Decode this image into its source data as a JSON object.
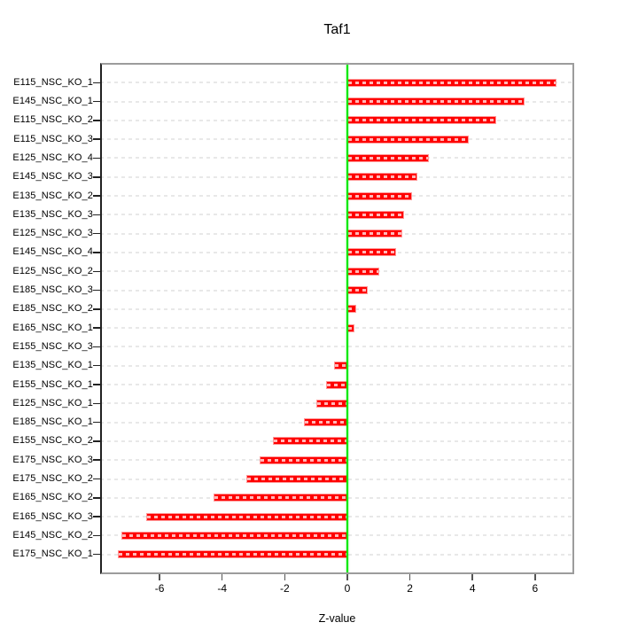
{
  "figure": {
    "title": "Taf1",
    "xlabel": "Z-value"
  },
  "chart_data": {
    "type": "bar",
    "orientation": "horizontal",
    "title": "Taf1",
    "xlabel": "Z-value",
    "ylabel": "",
    "legend": "none",
    "grid": "row-dashed",
    "categories": [
      "E115_NSC_KO_1",
      "E145_NSC_KO_1",
      "E115_NSC_KO_2",
      "E115_NSC_KO_3",
      "E125_NSC_KO_4",
      "E145_NSC_KO_3",
      "E135_NSC_KO_2",
      "E135_NSC_KO_3",
      "E125_NSC_KO_3",
      "E145_NSC_KO_4",
      "E125_NSC_KO_2",
      "E185_NSC_KO_3",
      "E185_NSC_KO_2",
      "E165_NSC_KO_1",
      "E155_NSC_KO_3",
      "E135_NSC_KO_1",
      "E155_NSC_KO_1",
      "E125_NSC_KO_1",
      "E185_NSC_KO_1",
      "E155_NSC_KO_2",
      "E175_NSC_KO_3",
      "E175_NSC_KO_2",
      "E165_NSC_KO_2",
      "E165_NSC_KO_3",
      "E145_NSC_KO_2",
      "E175_NSC_KO_1"
    ],
    "values": [
      6.69,
      5.67,
      4.76,
      3.88,
      2.61,
      2.25,
      2.08,
      1.8,
      1.75,
      1.56,
      1.02,
      0.64,
      0.27,
      0.22,
      -0.03,
      -0.43,
      -0.67,
      -0.99,
      -1.38,
      -2.39,
      -2.79,
      -3.24,
      -4.28,
      -6.42,
      -7.23,
      -7.34
    ],
    "x_ticks": [
      -6,
      -4,
      -2,
      0,
      2,
      4,
      6
    ],
    "xlim": [
      -7.9,
      7.25
    ],
    "colors": {
      "bar_fill": "#ff0000",
      "bar_border": "#ff9999",
      "zero_line": "#00e800",
      "grid_line": "#e8e8e8",
      "axis_box": "#9c9c9c",
      "axis_line": "#222222",
      "text": "#000000",
      "background": "#ffffff"
    }
  }
}
